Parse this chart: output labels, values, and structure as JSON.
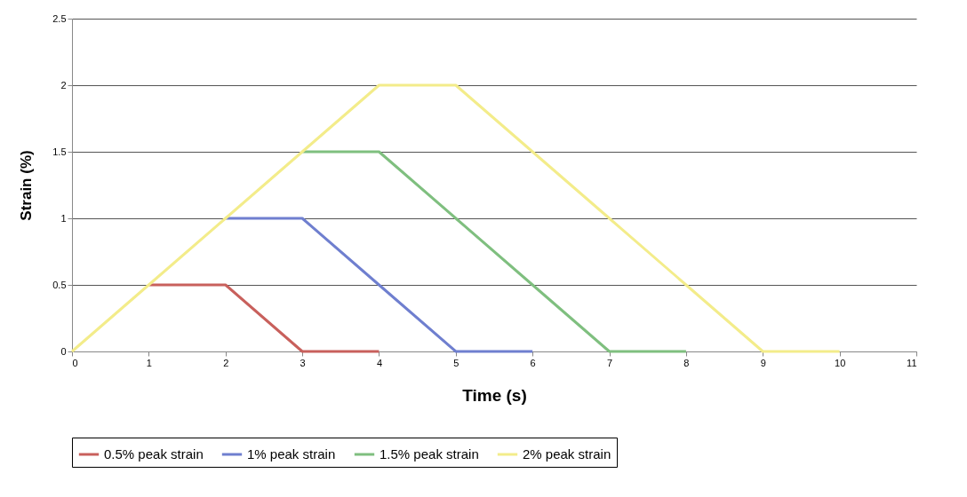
{
  "chart_data": {
    "type": "line",
    "xlabel": "Time (s)",
    "ylabel": "Strain (%)",
    "xlim": [
      0,
      11
    ],
    "xticks": [
      0,
      1,
      2,
      3,
      4,
      5,
      6,
      7,
      8,
      9,
      10,
      11
    ],
    "ylim": [
      0,
      2.5
    ],
    "yticks": [
      0,
      0.5,
      1,
      1.5,
      2,
      2.5
    ],
    "grid": "y",
    "legend": "bottom",
    "marker": "none",
    "line_style": "solid",
    "series": [
      {
        "name": "0.5% peak strain",
        "color": "#c8605c",
        "x": [
          1,
          2,
          3,
          4
        ],
        "values": [
          0.5,
          0.5,
          0,
          0
        ]
      },
      {
        "name": "1% peak strain",
        "color": "#6f7fcf",
        "x": [
          2,
          3,
          4,
          5,
          6
        ],
        "values": [
          1,
          1,
          0.5,
          0,
          0
        ]
      },
      {
        "name": "1.5% peak strain",
        "color": "#7fbf7f",
        "x": [
          3,
          4,
          5,
          6,
          7,
          8
        ],
        "values": [
          1.5,
          1.5,
          1,
          0.5,
          0,
          0
        ]
      },
      {
        "name": "2% peak strain",
        "color": "#f3ec8a",
        "x": [
          0,
          1,
          2,
          3,
          4,
          5,
          6,
          7,
          8,
          9,
          10
        ],
        "values": [
          0,
          0.5,
          1,
          1.5,
          2,
          2,
          1.5,
          1,
          0.5,
          0,
          0
        ]
      }
    ]
  }
}
